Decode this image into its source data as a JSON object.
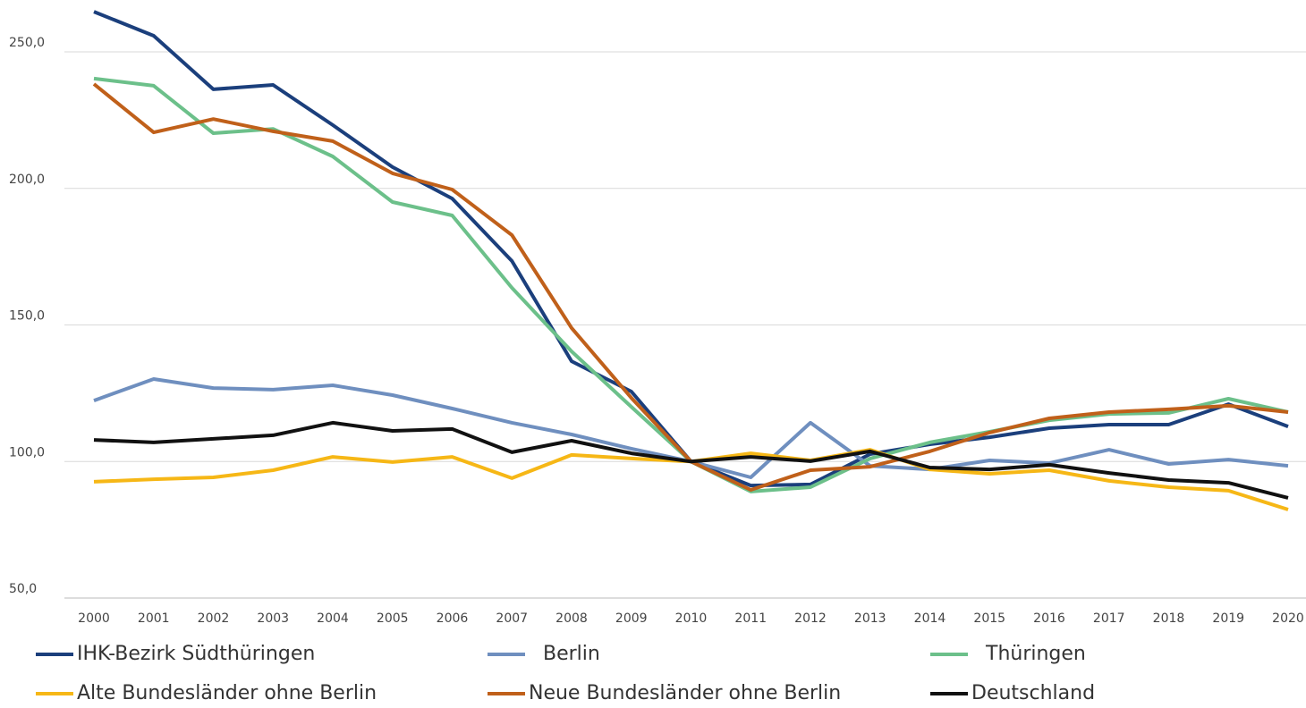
{
  "chart_data": {
    "type": "line",
    "categories": [
      "2000",
      "2001",
      "2002",
      "2003",
      "2004",
      "2005",
      "2006",
      "2007",
      "2008",
      "2009",
      "2010",
      "2011",
      "2012",
      "2013",
      "2014",
      "2015",
      "2016",
      "2017",
      "2018",
      "2019",
      "2020"
    ],
    "ylim": [
      50,
      270
    ],
    "yticks": [
      {
        "value": 50,
        "label": "50,0"
      },
      {
        "value": 100,
        "label": "100,0"
      },
      {
        "value": 150,
        "label": "150,0"
      },
      {
        "value": 200,
        "label": "200,0"
      },
      {
        "value": 250,
        "label": "250,0"
      }
    ],
    "grid": true,
    "legend": "bottom",
    "series": [
      {
        "name": "IHK-Bezirk Südthüringen",
        "color": "#1b3f7c",
        "values": [
          264.7,
          255.9,
          236.3,
          237.9,
          223.2,
          207.8,
          196.3,
          173.4,
          136.7,
          125.6,
          100,
          91.2,
          91.6,
          102.7,
          106.3,
          108.9,
          112.2,
          113.5,
          113.5,
          121,
          112.8
        ]
      },
      {
        "name": "Berlin",
        "color": "#6f8fbf",
        "values": [
          122.3,
          130.2,
          126.9,
          126.3,
          127.9,
          124.3,
          119.4,
          114.2,
          109.9,
          104.7,
          100,
          94.2,
          114.2,
          98.4,
          97.1,
          100.4,
          99.4,
          104.3,
          99.1,
          100.7,
          98.4
        ]
      },
      {
        "name": "Thüringen",
        "color": "#6cc08a",
        "values": [
          240.2,
          237.6,
          220.2,
          221.8,
          211.7,
          195,
          190.1,
          163.6,
          140.3,
          120,
          100,
          89,
          90.6,
          101.1,
          107,
          110.9,
          115.1,
          117.4,
          117.8,
          123,
          118.1
        ]
      },
      {
        "name": "Alte Bundesländer ohne Berlin",
        "color": "#f6b716",
        "values": [
          92.6,
          93.5,
          94.2,
          96.8,
          101.7,
          99.8,
          101.7,
          93.9,
          102.4,
          101.1,
          100,
          103,
          100.4,
          104.3,
          97.1,
          95.5,
          96.8,
          92.9,
          90.6,
          89.3,
          82.4
        ]
      },
      {
        "name": "Neue Bundesländer ohne Berlin",
        "color": "#c0601a",
        "values": [
          238.2,
          220.5,
          225.4,
          220.9,
          217.3,
          205.5,
          199.6,
          182.9,
          148.9,
          123.3,
          100,
          89.6,
          96.8,
          98.1,
          103.7,
          110.6,
          115.8,
          118.1,
          119.1,
          120.4,
          118.1
        ]
      },
      {
        "name": "Deutschland",
        "color": "#111111",
        "values": [
          107.9,
          107,
          108.3,
          109.6,
          114.2,
          111.2,
          111.9,
          103.4,
          107.6,
          103,
          100,
          101.7,
          100.1,
          103.7,
          97.8,
          97.1,
          98.8,
          95.8,
          93.2,
          92.2,
          86.7
        ]
      }
    ]
  }
}
